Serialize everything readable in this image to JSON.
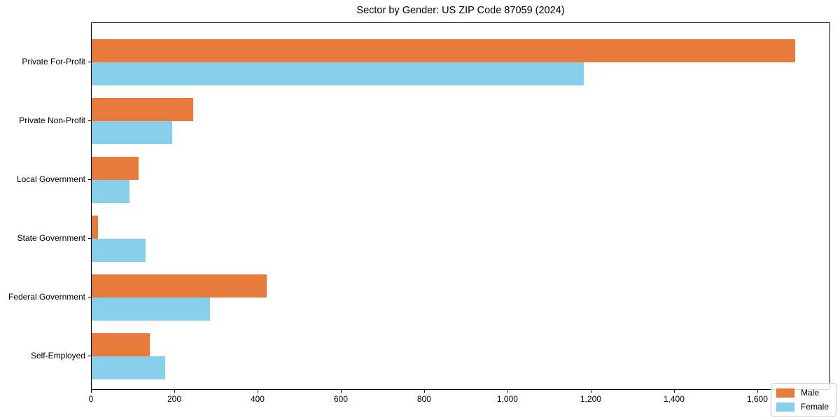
{
  "title": "Sector by Gender: US ZIP Code 87059 (2024)",
  "chart_data": {
    "type": "bar",
    "orientation": "horizontal",
    "title": "Sector by Gender: US ZIP Code 87059 (2024)",
    "xlabel": "",
    "ylabel": "",
    "categories": [
      "Private For-Profit",
      "Private Non-Profit",
      "Local Government",
      "State Government",
      "Federal Government",
      "Self-Employed"
    ],
    "series": [
      {
        "name": "Male",
        "color": "#E87B3B",
        "values": [
          1690,
          243,
          112,
          15,
          421,
          139
        ]
      },
      {
        "name": "Female",
        "color": "#87CEEB",
        "values": [
          1181,
          194,
          91,
          130,
          284,
          176
        ]
      }
    ],
    "xlim": [
      0,
      1775
    ],
    "xticks": [
      0,
      200,
      400,
      600,
      800,
      1000,
      1200,
      1400,
      1600
    ],
    "xtick_labels": [
      "0",
      "200",
      "400",
      "600",
      "800",
      "1,000",
      "1,200",
      "1,400",
      "1,600"
    ],
    "grid": false,
    "legend_position": "lower right",
    "plot_background": "#ffffff",
    "frame_color": "#000000"
  },
  "legend": {
    "items": [
      {
        "label": "Male",
        "color": "#E87B3B"
      },
      {
        "label": "Female",
        "color": "#87CEEB"
      }
    ]
  }
}
